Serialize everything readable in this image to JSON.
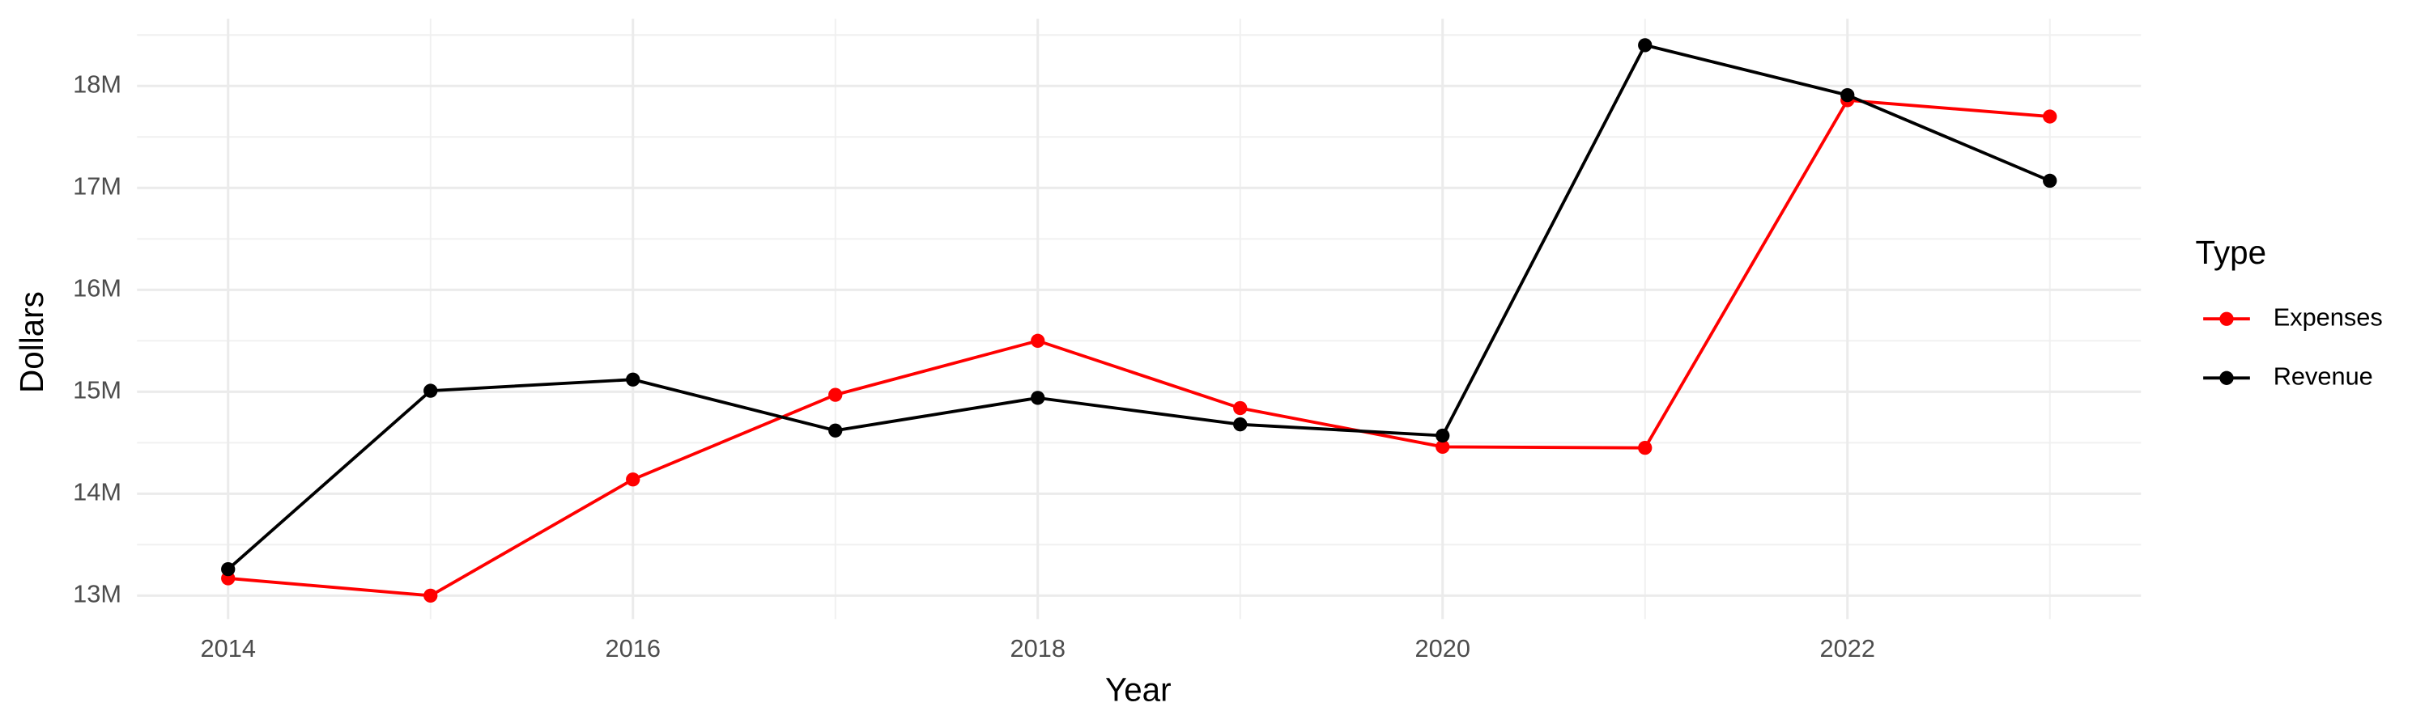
{
  "chart_data": {
    "type": "line",
    "x_label": "Year",
    "y_label": "Dollars",
    "legend_title": "Type",
    "legend_position": "right",
    "grid": true,
    "x": [
      2014,
      2015,
      2016,
      2017,
      2018,
      2019,
      2020,
      2021,
      2022,
      2023
    ],
    "xlim": [
      2013.55,
      2023.45
    ],
    "xticks": [
      2014,
      2016,
      2018,
      2020,
      2022
    ],
    "ylim": [
      12770000,
      18660000
    ],
    "yticks": [
      {
        "value": 13000000,
        "label": "13M"
      },
      {
        "value": 14000000,
        "label": "14M"
      },
      {
        "value": 15000000,
        "label": "15M"
      },
      {
        "value": 16000000,
        "label": "16M"
      },
      {
        "value": 17000000,
        "label": "17M"
      },
      {
        "value": 18000000,
        "label": "18M"
      }
    ],
    "series": [
      {
        "name": "Expenses",
        "color": "#ff0000",
        "values": [
          13170000,
          13000000,
          14140000,
          14970000,
          15500000,
          14840000,
          14460000,
          14450000,
          17860000,
          17700000
        ]
      },
      {
        "name": "Revenue",
        "color": "#000000",
        "values": [
          13260000,
          15010000,
          15120000,
          14620000,
          14940000,
          14680000,
          14570000,
          18400000,
          17910000,
          17070000
        ]
      }
    ]
  }
}
